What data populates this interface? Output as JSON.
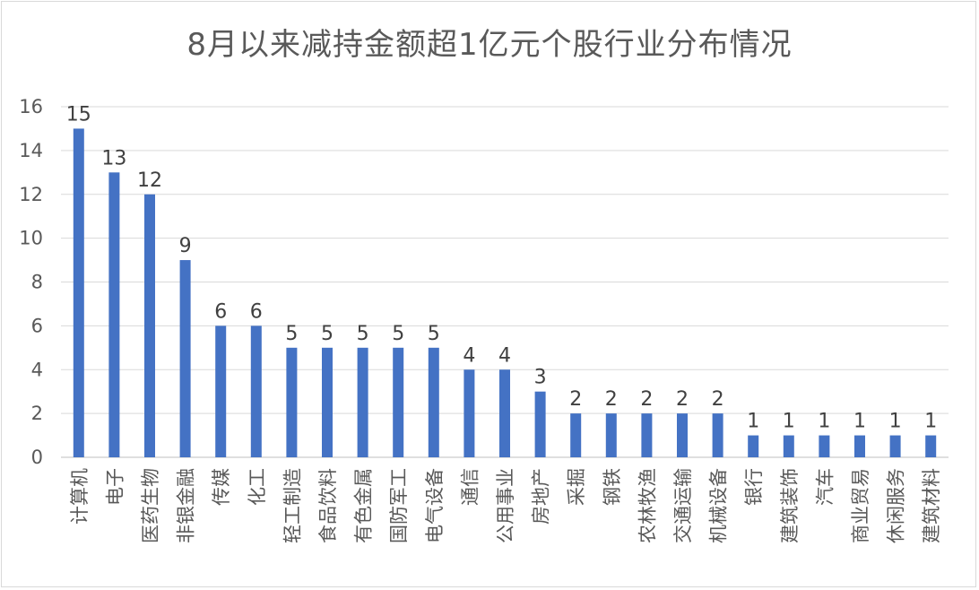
{
  "chart_data": {
    "type": "bar",
    "title": "8月以来减持金额超1亿元个股行业分布情况",
    "xlabel": "",
    "ylabel": "",
    "ylim": [
      0,
      16
    ],
    "yticks": [
      "0",
      "2",
      "4",
      "6",
      "8",
      "10",
      "12",
      "14",
      "16"
    ],
    "grid": true,
    "bar_color": "#4472c4",
    "categories": [
      "计算机",
      "电子",
      "医药生物",
      "非银金融",
      "传媒",
      "化工",
      "轻工制造",
      "食品饮料",
      "有色金属",
      "国防军工",
      "电气设备",
      "通信",
      "公用事业",
      "房地产",
      "采掘",
      "钢铁",
      "农林牧渔",
      "交通运输",
      "机械设备",
      "银行",
      "建筑装饰",
      "汽车",
      "商业贸易",
      "休闲服务",
      "建筑材料"
    ],
    "values": [
      15,
      13,
      12,
      9,
      6,
      6,
      5,
      5,
      5,
      5,
      5,
      4,
      4,
      3,
      2,
      2,
      2,
      2,
      2,
      1,
      1,
      1,
      1,
      1,
      1
    ]
  }
}
